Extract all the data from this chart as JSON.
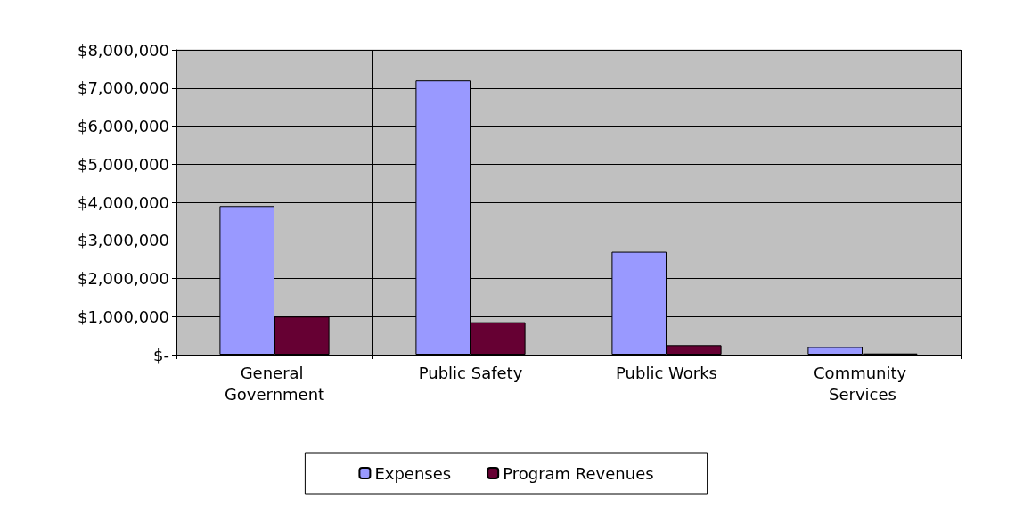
{
  "chart_data": {
    "type": "bar",
    "categories": [
      "General Government",
      "Public Safety",
      "Public Works",
      "Community Services"
    ],
    "series": [
      {
        "name": "Expenses",
        "color": "#9999ff",
        "values": [
          3900000,
          7200000,
          2700000,
          200000
        ]
      },
      {
        "name": "Program Revenues",
        "color": "#660033",
        "values": [
          1000000,
          850000,
          250000,
          30000
        ]
      }
    ],
    "ylim": [
      0,
      8000000
    ],
    "yticks": [
      {
        "value": 0,
        "label": "$-"
      },
      {
        "value": 1000000,
        "label": "$1,000,000"
      },
      {
        "value": 2000000,
        "label": "$2,000,000"
      },
      {
        "value": 3000000,
        "label": "$3,000,000"
      },
      {
        "value": 4000000,
        "label": "$4,000,000"
      },
      {
        "value": 5000000,
        "label": "$5,000,000"
      },
      {
        "value": 6000000,
        "label": "$6,000,000"
      },
      {
        "value": 7000000,
        "label": "$7,000,000"
      },
      {
        "value": 8000000,
        "label": "$8,000,000"
      }
    ],
    "grid": true,
    "legend": "bottom"
  }
}
